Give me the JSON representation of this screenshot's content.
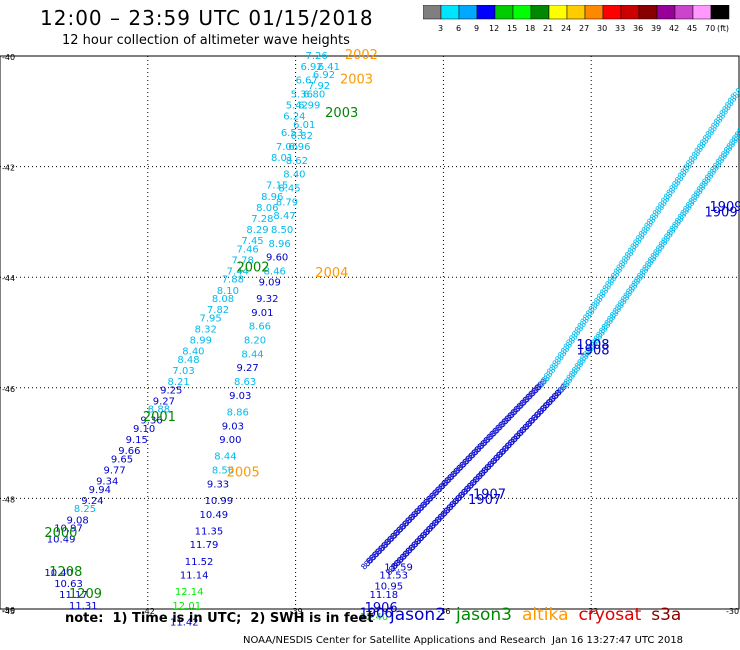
{
  "title": "12:00 – 23:59 UTC 01/15/2018",
  "subtitle": "12 hour collection of altimeter wave heights",
  "color_scale": {
    "colors": [
      "#7f7f7f",
      "#00e5ff",
      "#00a8ff",
      "#0000ff",
      "#00cc00",
      "#00ff00",
      "#008800",
      "#ffff00",
      "#ffcc00",
      "#ff8800",
      "#ff0000",
      "#cc0000",
      "#880000",
      "#990099",
      "#cc44cc",
      "#ff99ff",
      "#000000"
    ],
    "labels": [
      "3",
      "6",
      "9",
      "12",
      "15",
      "18",
      "21",
      "24",
      "27",
      "30",
      "33",
      "36",
      "39",
      "42",
      "45",
      "70",
      "(ft)"
    ]
  },
  "axes": {
    "lat_labels": [
      "-40",
      "-42",
      "-44",
      "-46",
      "-48",
      "-50"
    ],
    "lon_labels": [
      "-45",
      "-42",
      "-39",
      "-36",
      "-33",
      "-30"
    ]
  },
  "satellites": [
    {
      "name": "jason2",
      "color": "#0000cc"
    },
    {
      "name": "jason3",
      "color": "#008800"
    },
    {
      "name": "altika",
      "color": "#ff9900"
    },
    {
      "name": "cryosat",
      "color": "#dd0000"
    },
    {
      "name": "s3a",
      "color": "#880000"
    }
  ],
  "track_labels": [
    {
      "text": "2002",
      "color": "#ff9900",
      "lon": -38.0,
      "lat": -40.05
    },
    {
      "text": "2003",
      "color": "#ff9900",
      "lon": -38.1,
      "lat": -40.5
    },
    {
      "text": "2003",
      "color": "#008800",
      "lon": -38.4,
      "lat": -41.1
    },
    {
      "text": "2002",
      "color": "#008800",
      "lon": -40.2,
      "lat": -43.9
    },
    {
      "text": "2004",
      "color": "#ff9900",
      "lon": -38.6,
      "lat": -44.0
    },
    {
      "text": "2001",
      "color": "#008800",
      "lon": -42.1,
      "lat": -46.6
    },
    {
      "text": "2005",
      "color": "#ff9900",
      "lon": -40.4,
      "lat": -47.6
    },
    {
      "text": "2000",
      "color": "#008800",
      "lon": -44.1,
      "lat": -48.7
    },
    {
      "text": "1208",
      "color": "#008800",
      "lon": -44.0,
      "lat": -49.4
    },
    {
      "text": "1209",
      "color": "#008800",
      "lon": -43.6,
      "lat": -49.8
    },
    {
      "text": "1909",
      "color": "#0000cc",
      "lon": -30.6,
      "lat": -42.8
    },
    {
      "text": "1909",
      "color": "#0000cc",
      "lon": -30.7,
      "lat": -42.9
    },
    {
      "text": "1908",
      "color": "#0000cc",
      "lon": -33.3,
      "lat": -45.3
    },
    {
      "text": "1908",
      "color": "#0000cc",
      "lon": -33.3,
      "lat": -45.4
    },
    {
      "text": "1907",
      "color": "#0000cc",
      "lon": -35.4,
      "lat": -48.0
    },
    {
      "text": "1907",
      "color": "#0000cc",
      "lon": -35.5,
      "lat": -48.1
    },
    {
      "text": "1906",
      "color": "#0000cc",
      "lon": -37.6,
      "lat": -50.05
    },
    {
      "text": "1906",
      "color": "#0000cc",
      "lon": -37.7,
      "lat": -50.15
    }
  ],
  "tracks": [
    {
      "name": "altika-2002",
      "values": [
        {
          "t": "7.26",
          "c": "#00bbee",
          "lon": -38.8,
          "lat": -40.05
        },
        {
          "t": "6.92",
          "c": "#00bbee",
          "lon": -38.9,
          "lat": -40.25
        },
        {
          "t": "6.67",
          "c": "#00bbee",
          "lon": -39.0,
          "lat": -40.5
        },
        {
          "t": "5.36",
          "c": "#00bbee",
          "lon": -39.1,
          "lat": -40.75
        },
        {
          "t": "5.42",
          "c": "#00bbee",
          "lon": -39.2,
          "lat": -40.95
        },
        {
          "t": "6.24",
          "c": "#00bbee",
          "lon": -39.25,
          "lat": -41.15
        },
        {
          "t": "6.53",
          "c": "#00bbee",
          "lon": -39.3,
          "lat": -41.45
        },
        {
          "t": "7.06",
          "c": "#00bbee",
          "lon": -39.4,
          "lat": -41.7
        },
        {
          "t": "8.01",
          "c": "#00bbee",
          "lon": -39.5,
          "lat": -41.9
        },
        {
          "t": "7.15",
          "c": "#00bbee",
          "lon": -39.6,
          "lat": -42.4
        },
        {
          "t": "8.96",
          "c": "#00bbee",
          "lon": -39.7,
          "lat": -42.6
        },
        {
          "t": "8.06",
          "c": "#00bbee",
          "lon": -39.8,
          "lat": -42.8
        },
        {
          "t": "7.28",
          "c": "#00bbee",
          "lon": -39.9,
          "lat": -43.0
        },
        {
          "t": "8.29",
          "c": "#00bbee",
          "lon": -40.0,
          "lat": -43.2
        },
        {
          "t": "7.45",
          "c": "#00bbee",
          "lon": -40.1,
          "lat": -43.4
        },
        {
          "t": "7.46",
          "c": "#00bbee",
          "lon": -40.2,
          "lat": -43.55
        },
        {
          "t": "7.78",
          "c": "#00bbee",
          "lon": -40.3,
          "lat": -43.75
        },
        {
          "t": "7.44",
          "c": "#00bbee",
          "lon": -40.4,
          "lat": -43.95
        },
        {
          "t": "7.88",
          "c": "#00bbee",
          "lon": -40.5,
          "lat": -44.1
        },
        {
          "t": "8.10",
          "c": "#00bbee",
          "lon": -40.6,
          "lat": -44.3
        },
        {
          "t": "8.08",
          "c": "#00bbee",
          "lon": -40.7,
          "lat": -44.45
        },
        {
          "t": "7.82",
          "c": "#00bbee",
          "lon": -40.8,
          "lat": -44.65
        },
        {
          "t": "7.95",
          "c": "#00bbee",
          "lon": -40.95,
          "lat": -44.8
        },
        {
          "t": "8.32",
          "c": "#00bbee",
          "lon": -41.05,
          "lat": -45.0
        },
        {
          "t": "8.99",
          "c": "#00bbee",
          "lon": -41.15,
          "lat": -45.2
        },
        {
          "t": "8.40",
          "c": "#00bbee",
          "lon": -41.3,
          "lat": -45.4
        },
        {
          "t": "8.48",
          "c": "#00bbee",
          "lon": -41.4,
          "lat": -45.55
        },
        {
          "t": "7.03",
          "c": "#00bbee",
          "lon": -41.5,
          "lat": -45.75
        },
        {
          "t": "8.21",
          "c": "#00bbee",
          "lon": -41.6,
          "lat": -45.95
        },
        {
          "t": "9.25",
          "c": "#0000cc",
          "lon": -41.75,
          "lat": -46.1
        },
        {
          "t": "9.27",
          "c": "#0000cc",
          "lon": -41.9,
          "lat": -46.3
        },
        {
          "t": "8.88",
          "c": "#00bbee",
          "lon": -42.0,
          "lat": -46.45
        },
        {
          "t": "9.36",
          "c": "#0000cc",
          "lon": -42.15,
          "lat": -46.65
        },
        {
          "t": "9.10",
          "c": "#0000cc",
          "lon": -42.3,
          "lat": -46.8
        },
        {
          "t": "9.15",
          "c": "#0000cc",
          "lon": -42.45,
          "lat": -47.0
        },
        {
          "t": "9.66",
          "c": "#0000cc",
          "lon": -42.6,
          "lat": -47.2
        },
        {
          "t": "9.65",
          "c": "#0000cc",
          "lon": -42.75,
          "lat": -47.35
        },
        {
          "t": "9.77",
          "c": "#0000cc",
          "lon": -42.9,
          "lat": -47.55
        },
        {
          "t": "9.34",
          "c": "#0000cc",
          "lon": -43.05,
          "lat": -47.75
        },
        {
          "t": "9.94",
          "c": "#0000cc",
          "lon": -43.2,
          "lat": -47.9
        },
        {
          "t": "9.24",
          "c": "#0000cc",
          "lon": -43.35,
          "lat": -48.1
        },
        {
          "t": "8.25",
          "c": "#00bbee",
          "lon": -43.5,
          "lat": -48.25
        },
        {
          "t": "9.08",
          "c": "#0000cc",
          "lon": -43.65,
          "lat": -48.45
        },
        {
          "t": "10.97",
          "c": "#0000cc",
          "lon": -43.9,
          "lat": -48.6
        },
        {
          "t": "10.49",
          "c": "#0000cc",
          "lon": -44.05,
          "lat": -48.8
        }
      ]
    },
    {
      "name": "altika-2004",
      "values": [
        {
          "t": "6.41",
          "c": "#00bbee",
          "lon": -38.55,
          "lat": -40.25
        },
        {
          "t": "6.92",
          "c": "#00bbee",
          "lon": -38.65,
          "lat": -40.4
        },
        {
          "t": "7.92",
          "c": "#00bbee",
          "lon": -38.75,
          "lat": -40.6
        },
        {
          "t": "6.80",
          "c": "#00bbee",
          "lon": -38.85,
          "lat": -40.75
        },
        {
          "t": "6.99",
          "c": "#00bbee",
          "lon": -38.95,
          "lat": -40.95
        },
        {
          "t": "6.01",
          "c": "#00bbee",
          "lon": -39.05,
          "lat": -41.3
        },
        {
          "t": "6.82",
          "c": "#00bbee",
          "lon": -39.1,
          "lat": -41.5
        },
        {
          "t": "6.96",
          "c": "#00bbee",
          "lon": -39.15,
          "lat": -41.7
        },
        {
          "t": "8.62",
          "c": "#00bbee",
          "lon": -39.2,
          "lat": -41.95
        },
        {
          "t": "8.40",
          "c": "#00bbee",
          "lon": -39.25,
          "lat": -42.2
        },
        {
          "t": "8.45",
          "c": "#00bbee",
          "lon": -39.35,
          "lat": -42.45
        },
        {
          "t": "8.79",
          "c": "#00bbee",
          "lon": -39.4,
          "lat": -42.7
        },
        {
          "t": "8.47",
          "c": "#00bbee",
          "lon": -39.45,
          "lat": -42.95
        },
        {
          "t": "8.50",
          "c": "#00bbee",
          "lon": -39.5,
          "lat": -43.2
        },
        {
          "t": "8.96",
          "c": "#00bbee",
          "lon": -39.55,
          "lat": -43.45
        },
        {
          "t": "9.60",
          "c": "#0000cc",
          "lon": -39.6,
          "lat": -43.7
        },
        {
          "t": "8.46",
          "c": "#00bbee",
          "lon": -39.65,
          "lat": -43.95
        },
        {
          "t": "9.09",
          "c": "#0000cc",
          "lon": -39.75,
          "lat": -44.15
        },
        {
          "t": "9.32",
          "c": "#0000cc",
          "lon": -39.8,
          "lat": -44.45
        },
        {
          "t": "9.01",
          "c": "#0000cc",
          "lon": -39.9,
          "lat": -44.7
        },
        {
          "t": "8.66",
          "c": "#00bbee",
          "lon": -39.95,
          "lat": -44.95
        },
        {
          "t": "8.20",
          "c": "#00bbee",
          "lon": -40.05,
          "lat": -45.2
        },
        {
          "t": "8.44",
          "c": "#00bbee",
          "lon": -40.1,
          "lat": -45.45
        },
        {
          "t": "9.27",
          "c": "#0000cc",
          "lon": -40.2,
          "lat": -45.7
        },
        {
          "t": "8.63",
          "c": "#00bbee",
          "lon": -40.25,
          "lat": -45.95
        },
        {
          "t": "9.03",
          "c": "#0000cc",
          "lon": -40.35,
          "lat": -46.2
        },
        {
          "t": "8.86",
          "c": "#00bbee",
          "lon": -40.4,
          "lat": -46.5
        },
        {
          "t": "9.03",
          "c": "#0000cc",
          "lon": -40.5,
          "lat": -46.75
        },
        {
          "t": "9.00",
          "c": "#0000cc",
          "lon": -40.55,
          "lat": -47.0
        },
        {
          "t": "8.44",
          "c": "#00bbee",
          "lon": -40.65,
          "lat": -47.3
        },
        {
          "t": "8.56",
          "c": "#00bbee",
          "lon": -40.7,
          "lat": -47.55
        },
        {
          "t": "9.33",
          "c": "#0000cc",
          "lon": -40.8,
          "lat": -47.8
        },
        {
          "t": "10.99",
          "c": "#0000cc",
          "lon": -40.85,
          "lat": -48.1
        },
        {
          "t": "10.49",
          "c": "#0000cc",
          "lon": -40.95,
          "lat": -48.35
        },
        {
          "t": "11.35",
          "c": "#0000cc",
          "lon": -41.05,
          "lat": -48.65
        },
        {
          "t": "11.79",
          "c": "#0000cc",
          "lon": -41.15,
          "lat": -48.9
        },
        {
          "t": "11.52",
          "c": "#0000cc",
          "lon": -41.25,
          "lat": -49.2
        },
        {
          "t": "11.14",
          "c": "#0000cc",
          "lon": -41.35,
          "lat": -49.45
        },
        {
          "t": "12.14",
          "c": "#00ee00",
          "lon": -41.45,
          "lat": -49.75
        },
        {
          "t": "12.01",
          "c": "#00ee00",
          "lon": -41.5,
          "lat": -50.0
        },
        {
          "t": "11.42",
          "c": "#0000cc",
          "lon": -41.55,
          "lat": -50.3
        }
      ]
    },
    {
      "name": "west-1208",
      "values": [
        {
          "t": "10.40",
          "c": "#0000cc",
          "lon": -44.1,
          "lat": -49.4
        },
        {
          "t": "10.63",
          "c": "#0000cc",
          "lon": -43.9,
          "lat": -49.6
        },
        {
          "t": "11.17",
          "c": "#0000cc",
          "lon": -43.8,
          "lat": -49.8
        },
        {
          "t": "11.31",
          "c": "#0000cc",
          "lon": -43.6,
          "lat": -50.0
        }
      ]
    },
    {
      "name": "jason2-1906",
      "values": [
        {
          "t": "11.59",
          "c": "#0000cc",
          "lon": -37.2,
          "lat": -49.3
        },
        {
          "t": "11.53",
          "c": "#0000cc",
          "lon": -37.3,
          "lat": -49.45
        },
        {
          "t": "10.95",
          "c": "#0000cc",
          "lon": -37.4,
          "lat": -49.65
        },
        {
          "t": "11.18",
          "c": "#0000cc",
          "lon": -37.5,
          "lat": -49.8
        },
        {
          "t": "12.40",
          "c": "#00ee00",
          "lon": -37.7,
          "lat": -50.2
        }
      ]
    }
  ]
}
